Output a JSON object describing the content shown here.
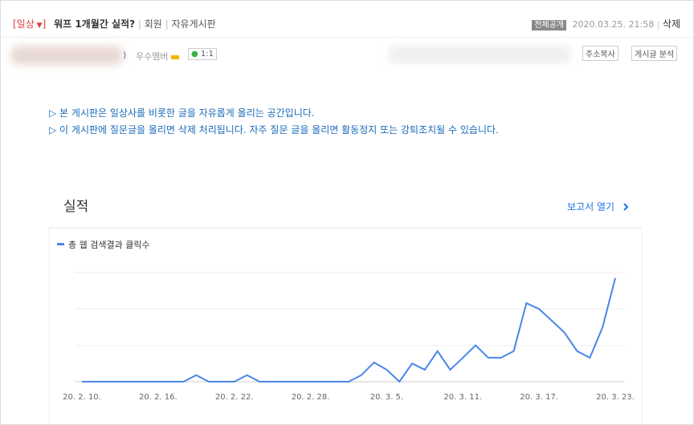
{
  "header": {
    "category": "[일상",
    "category_end": "]",
    "title": "워프 1개월간 실적?",
    "member": "회원",
    "board": "자유게시판",
    "visibility": "전체공개",
    "date": "2020.03.25. 21:58",
    "delete": "삭제"
  },
  "author": {
    "paren": ")",
    "rank": "우수멤버",
    "chat": "1:1",
    "copy_url": "주소복사",
    "analysis": "게시글 분석"
  },
  "notices": [
    "▷ 본 게시판은 일상사를 비롯한 글을 자유롭게 올리는 공간입니다.",
    "▷ 이 게시판에 질문글을 올리면 삭제 처리됩니다. 자주 질문 글을 올리면 활동정지 또는 강퇴조치될 수 있습니다."
  ],
  "chart": {
    "type": "line",
    "title": "실적",
    "report_link": "보고서 열기",
    "categories": [
      "20. 2. 10.",
      null,
      null,
      null,
      null,
      null,
      "20. 2. 16.",
      null,
      null,
      null,
      null,
      null,
      "20. 2. 22.",
      null,
      null,
      null,
      null,
      null,
      "20. 2. 28.",
      null,
      null,
      null,
      null,
      null,
      "20. 3. 5.",
      null,
      null,
      null,
      null,
      null,
      "20. 3. 11.",
      null,
      null,
      null,
      null,
      null,
      "20. 3. 17.",
      null,
      null,
      null,
      null,
      null,
      "20. 3. 23."
    ],
    "series": [
      {
        "name": "총 웹 검색결과 클릭수",
        "color": "#4a86e8",
        "values": [
          0,
          0,
          0,
          0,
          0,
          0,
          0,
          0,
          0,
          0.18,
          0,
          0,
          0,
          0.18,
          0,
          0,
          0,
          0,
          0,
          0,
          0,
          0,
          0.18,
          0.53,
          0.33,
          0,
          0.5,
          0.33,
          0.84,
          0.33,
          0.66,
          1.0,
          0.66,
          0.66,
          0.84,
          2.16,
          2.0,
          1.68,
          1.35,
          0.84,
          0.66,
          1.5,
          2.85
        ]
      }
    ],
    "ylim": [
      0,
      3
    ]
  }
}
